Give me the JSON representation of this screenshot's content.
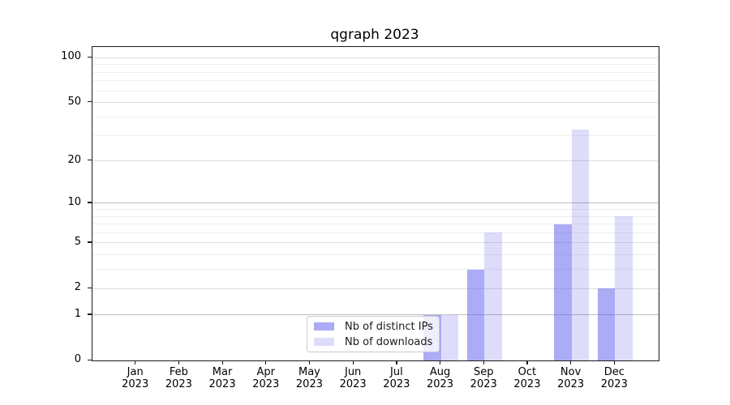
{
  "title": "qgraph 2023",
  "legend": {
    "items": [
      {
        "label": "Nb of distinct IPs",
        "color": "rgba(102,102,238,0.55)"
      },
      {
        "label": "Nb of downloads",
        "color": "rgba(102,102,238,0.22)"
      }
    ]
  },
  "colors": {
    "bar_distinct_ips": "rgba(102,102,238,0.55)",
    "bar_downloads": "rgba(102,102,238,0.22)",
    "grid_decade": "#bcbcbc",
    "grid_major": "#dedede",
    "grid_minor": "#eeeeee",
    "spine": "#1a1a1a"
  },
  "chart_data": {
    "type": "bar",
    "title": "qgraph 2023",
    "categories": [
      "Jan 2023",
      "Feb 2023",
      "Mar 2023",
      "Apr 2023",
      "May 2023",
      "Jun 2023",
      "Jul 2023",
      "Aug 2023",
      "Sep 2023",
      "Oct 2023",
      "Nov 2023",
      "Dec 2023"
    ],
    "series": [
      {
        "name": "Nb of distinct IPs",
        "values": [
          0,
          0,
          0,
          0,
          0,
          0,
          0,
          1,
          3,
          0,
          7,
          2
        ]
      },
      {
        "name": "Nb of downloads",
        "values": [
          0,
          0,
          0,
          0,
          0,
          0,
          0,
          1,
          6,
          0,
          33,
          8
        ]
      }
    ],
    "xlabel": "",
    "ylabel": "",
    "yscale": "log1p",
    "ylim": [
      0,
      120
    ],
    "yticks": [
      0,
      1,
      2,
      5,
      10,
      20,
      50,
      100
    ],
    "yticks_decade_emphasis": [
      1,
      10
    ],
    "yticks_minor": [
      3,
      4,
      6,
      7,
      8,
      9,
      30,
      40,
      60,
      70,
      80,
      90
    ],
    "grid": true,
    "legend_position": "lower center"
  }
}
